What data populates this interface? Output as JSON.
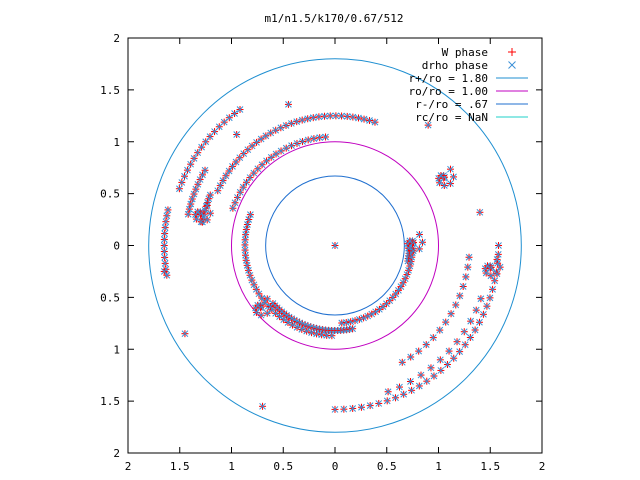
{
  "chart_data": {
    "type": "scatter",
    "title": "m1/n1.5/k170/0.67/512",
    "xlabel": "",
    "ylabel": "",
    "xlim": [
      -2,
      2
    ],
    "ylim": [
      -2,
      2
    ],
    "x_ticks": [
      -2,
      -1.5,
      -1,
      -0.5,
      0,
      0.5,
      1,
      1.5,
      2
    ],
    "y_ticks": [
      -2,
      -1.5,
      -1,
      -0.5,
      0,
      0.5,
      1,
      1.5,
      2
    ],
    "x_tick_labels": [
      "2",
      "1.5",
      "1",
      "0.5",
      "0",
      "0.5",
      "1",
      "1.5",
      "2"
    ],
    "y_tick_labels": [
      "2",
      "1.5",
      "1",
      "0.5",
      "0",
      "0.5",
      "1",
      "1.5",
      "2"
    ],
    "grid": false,
    "legend_position": "top-right",
    "legend": [
      {
        "label": "W phase",
        "symbol": "+",
        "color": "#ff0000"
      },
      {
        "label": "drho phase",
        "symbol": "x",
        "color": "#3a8fd6"
      },
      {
        "label": "r+/ro = 1.80",
        "symbol": "line",
        "color": "#1f8fd1"
      },
      {
        "label": "ro/ro = 1.00",
        "symbol": "line",
        "color": "#c000c0"
      },
      {
        "label": "r-/ro = .67",
        "symbol": "line",
        "color": "#1f6fcf"
      },
      {
        "label": "rc/ro = NaN",
        "symbol": "line",
        "color": "#1fd0c8"
      }
    ],
    "circles": [
      {
        "name": "r+/ro = 1.80",
        "radius": 1.8,
        "color": "#1f8fd1"
      },
      {
        "name": "ro/ro = 1.00",
        "radius": 1.0,
        "color": "#c000c0"
      },
      {
        "name": "r-/ro = .67",
        "radius": 0.67,
        "color": "#1f6fcf"
      }
    ],
    "arcs": [
      {
        "r": 1.6,
        "t1": 125,
        "t2": 160,
        "n": 16
      },
      {
        "r": 1.65,
        "t1": 168,
        "t2": 190,
        "n": 12
      },
      {
        "r": 1.45,
        "t1": 150,
        "t2": 168,
        "n": 10
      },
      {
        "r": 1.3,
        "t1": 158,
        "t2": 170,
        "n": 8
      },
      {
        "r": 1.25,
        "t1": 72,
        "t2": 155,
        "n": 34
      },
      {
        "r": 1.05,
        "t1": 95,
        "t2": 160,
        "n": 22
      },
      {
        "r": 0.87,
        "t1": 160,
        "t2": 268,
        "n": 34
      },
      {
        "r": 0.82,
        "t1": 223,
        "t2": 282,
        "n": 30
      },
      {
        "r": 0.75,
        "t1": 275,
        "t2": 358,
        "n": 26
      },
      {
        "r": 0.72,
        "t1": 348,
        "t2": 362,
        "n": 8
      },
      {
        "r": 1.58,
        "t1": 270,
        "t2": 360,
        "n": 30
      },
      {
        "r": 1.5,
        "t1": 290,
        "t2": 340,
        "n": 12
      },
      {
        "r": 1.3,
        "t1": 300,
        "t2": 355,
        "n": 14
      }
    ],
    "clusters": [
      {
        "x": -1.3,
        "y": 0.3
      },
      {
        "x": -0.72,
        "y": -0.6
      },
      {
        "x": 0.75,
        "y": 0.02
      },
      {
        "x": 1.5,
        "y": -0.22
      },
      {
        "x": 1.05,
        "y": 0.65
      }
    ],
    "isolated_points": [
      {
        "x": -0.45,
        "y": 1.36
      },
      {
        "x": -0.95,
        "y": 1.07
      },
      {
        "x": 0.9,
        "y": 1.16
      },
      {
        "x": -1.45,
        "y": -0.85
      },
      {
        "x": -0.7,
        "y": -1.55
      },
      {
        "x": 1.4,
        "y": 0.32
      },
      {
        "x": -1.65,
        "y": -0.25
      },
      {
        "x": 0.0,
        "y": 0.0
      }
    ]
  }
}
